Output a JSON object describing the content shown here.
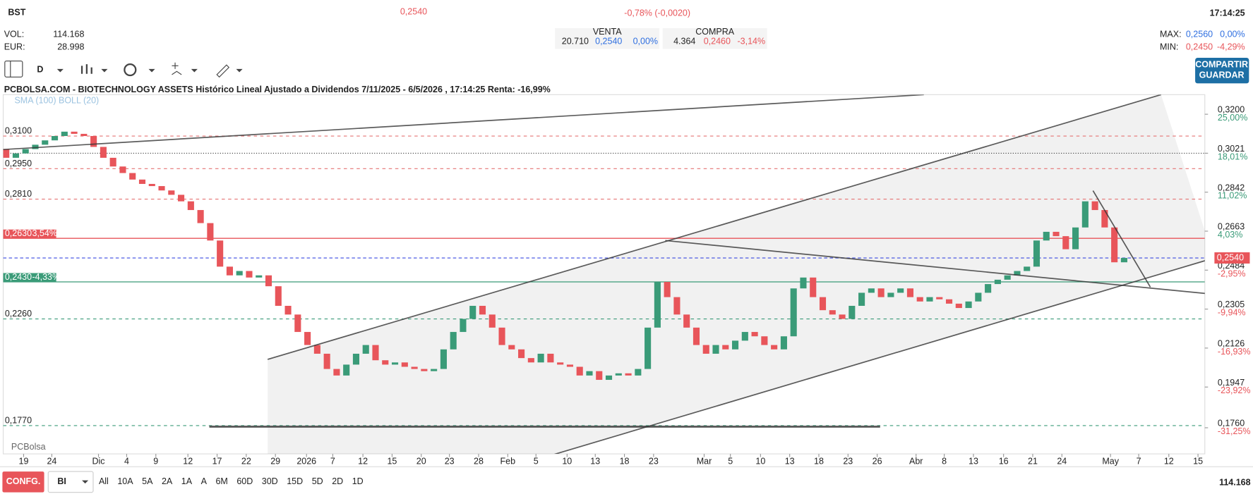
{
  "header": {
    "symbol": "BST",
    "price": "0,2540",
    "change_pct": "-0,78%",
    "change_abs": "(-0,0020)",
    "time": "17:14:25",
    "vol_label": "VOL:",
    "vol": "114.168",
    "eur_label": "EUR:",
    "eur": "28.998"
  },
  "quote": {
    "venta_label": "VENTA",
    "compra_label": "COMPRA",
    "venta": [
      "20.710",
      "0,2540",
      "0,00%"
    ],
    "compra": [
      "4.364",
      "0,2460",
      "-3,14%"
    ]
  },
  "range": {
    "max_label": "MAX:",
    "max": "0,2560",
    "max_pct": "0,00%",
    "min_label": "MIN:",
    "min": "0,2450",
    "min_pct": "-4,29%"
  },
  "toolbar": {
    "interval": "D",
    "share": "COMPARTIR",
    "save": "GUARDAR"
  },
  "footer": {
    "config": "CONFG.",
    "mode": "BI",
    "ranges": [
      "All",
      "10A",
      "5A",
      "2A",
      "1A",
      "A",
      "6M",
      "60D",
      "30D",
      "15D",
      "5D",
      "2D",
      "1D"
    ],
    "volume": "114.168"
  },
  "logo": "PCBolsa",
  "chart_data": {
    "type": "candlestick",
    "title": "PCBOLSA.COM - BIOTECHNOLOGY ASSETS Histórico Lineal Ajustado a Dividendos 7/11/2025 - 6/5/2026 , 17:14:25 Renta: -16,99%",
    "indicators": "SMA (100) BOLL (20)",
    "up_color": "#3a9b78",
    "down_color": "#e8555a",
    "open": [
      0.304,
      0.3,
      0.302,
      0.304,
      0.306,
      0.308,
      0.31,
      0.312,
      0.311,
      0.31,
      0.305,
      0.3,
      0.296,
      0.293,
      0.29,
      0.288,
      0.287,
      0.285,
      0.283,
      0.28,
      0.276,
      0.27,
      0.262,
      0.25,
      0.246,
      0.248,
      0.245,
      0.246,
      0.241,
      0.232,
      0.228,
      0.22,
      0.214,
      0.21,
      0.203,
      0.2,
      0.205,
      0.21,
      0.214,
      0.207,
      0.205,
      0.206,
      0.204,
      0.203,
      0.202,
      0.203,
      0.212,
      0.22,
      0.226,
      0.232,
      0.228,
      0.222,
      0.214,
      0.212,
      0.208,
      0.206,
      0.21,
      0.206,
      0.205,
      0.204,
      0.2,
      0.202,
      0.198,
      0.2,
      0.201,
      0.2,
      0.203,
      0.222,
      0.243,
      0.236,
      0.228,
      0.222,
      0.214,
      0.21,
      0.214,
      0.212,
      0.216,
      0.22,
      0.218,
      0.214,
      0.212,
      0.218,
      0.24,
      0.245,
      0.236,
      0.23,
      0.228,
      0.226,
      0.232,
      0.238,
      0.24,
      0.236,
      0.238,
      0.24,
      0.236,
      0.234,
      0.236,
      0.235,
      0.233,
      0.231,
      0.234,
      0.238,
      0.242,
      0.244,
      0.246,
      0.248,
      0.25,
      0.262,
      0.266,
      0.264,
      0.258,
      0.268,
      0.28,
      0.276,
      0.268,
      0.252
    ],
    "close": [
      0.3,
      0.302,
      0.304,
      0.306,
      0.308,
      0.31,
      0.312,
      0.311,
      0.31,
      0.305,
      0.3,
      0.296,
      0.293,
      0.29,
      0.288,
      0.287,
      0.285,
      0.283,
      0.28,
      0.276,
      0.27,
      0.262,
      0.25,
      0.246,
      0.248,
      0.245,
      0.246,
      0.241,
      0.232,
      0.228,
      0.22,
      0.214,
      0.21,
      0.203,
      0.2,
      0.205,
      0.21,
      0.214,
      0.207,
      0.205,
      0.206,
      0.204,
      0.203,
      0.202,
      0.203,
      0.212,
      0.22,
      0.226,
      0.232,
      0.228,
      0.222,
      0.214,
      0.212,
      0.208,
      0.206,
      0.21,
      0.206,
      0.205,
      0.204,
      0.2,
      0.202,
      0.198,
      0.2,
      0.201,
      0.2,
      0.203,
      0.222,
      0.243,
      0.236,
      0.228,
      0.222,
      0.214,
      0.21,
      0.214,
      0.212,
      0.216,
      0.22,
      0.218,
      0.214,
      0.212,
      0.218,
      0.24,
      0.245,
      0.236,
      0.23,
      0.228,
      0.226,
      0.232,
      0.238,
      0.24,
      0.236,
      0.238,
      0.24,
      0.236,
      0.234,
      0.236,
      0.235,
      0.233,
      0.231,
      0.234,
      0.238,
      0.242,
      0.244,
      0.246,
      0.248,
      0.25,
      0.262,
      0.266,
      0.264,
      0.258,
      0.268,
      0.28,
      0.276,
      0.268,
      0.252,
      0.254
    ],
    "xlim": [
      -0.3,
      123.3
    ],
    "ylim": [
      0.164,
      0.329
    ],
    "xticks": [
      {
        "value": 1.8,
        "label": "19"
      },
      {
        "value": 4.7,
        "label": "24"
      },
      {
        "value": 9.5,
        "label": "Dic"
      },
      {
        "value": 12.4,
        "label": "4"
      },
      {
        "value": 15.4,
        "label": "9"
      },
      {
        "value": 18.7,
        "label": "12"
      },
      {
        "value": 21.7,
        "label": "17"
      },
      {
        "value": 24.7,
        "label": "22"
      },
      {
        "value": 27.7,
        "label": "29"
      },
      {
        "value": 30.9,
        "label": "2026"
      },
      {
        "value": 33.6,
        "label": "7"
      },
      {
        "value": 36.7,
        "label": "12"
      },
      {
        "value": 39.7,
        "label": "15"
      },
      {
        "value": 42.7,
        "label": "20"
      },
      {
        "value": 45.6,
        "label": "23"
      },
      {
        "value": 48.6,
        "label": "28"
      },
      {
        "value": 51.6,
        "label": "Feb"
      },
      {
        "value": 54.5,
        "label": "5"
      },
      {
        "value": 57.7,
        "label": "10"
      },
      {
        "value": 60.6,
        "label": "13"
      },
      {
        "value": 63.6,
        "label": "18"
      },
      {
        "value": 66.6,
        "label": "23"
      },
      {
        "value": 71.8,
        "label": "Mar"
      },
      {
        "value": 74.5,
        "label": "5"
      },
      {
        "value": 77.6,
        "label": "10"
      },
      {
        "value": 80.6,
        "label": "13"
      },
      {
        "value": 83.6,
        "label": "18"
      },
      {
        "value": 86.6,
        "label": "23"
      },
      {
        "value": 89.6,
        "label": "26"
      },
      {
        "value": 93.6,
        "label": "Abr"
      },
      {
        "value": 96.5,
        "label": "8"
      },
      {
        "value": 99.5,
        "label": "13"
      },
      {
        "value": 102.6,
        "label": "16"
      },
      {
        "value": 105.6,
        "label": "21"
      },
      {
        "value": 108.6,
        "label": "24"
      },
      {
        "value": 113.6,
        "label": "May"
      },
      {
        "value": 116.5,
        "label": "7"
      },
      {
        "value": 119.6,
        "label": "12"
      },
      {
        "value": 122.6,
        "label": "15"
      }
    ],
    "yticks": [
      {
        "value": 0.32,
        "label": "0,3200"
      },
      {
        "value": 0.3021,
        "label": "0,3021"
      },
      {
        "value": 0.2842,
        "label": "0,2842"
      },
      {
        "value": 0.2663,
        "label": "0,2663"
      },
      {
        "value": 0.2484,
        "label": "0,2484"
      },
      {
        "value": 0.2305,
        "label": "0,2305"
      },
      {
        "value": 0.2126,
        "label": "0,2126"
      },
      {
        "value": 0.1947,
        "label": "0,1947"
      },
      {
        "value": 0.176,
        "label": "0,1760"
      }
    ],
    "ytick_pcts": [
      "25,00%",
      "18,01%",
      "11,02%",
      "4,03%",
      "-2,95%",
      "-9,94%",
      "-16,93%",
      "-23,92%",
      "-31,25%"
    ],
    "current": {
      "value": 0.254,
      "label": "0,2540",
      "color": "#3949e0"
    },
    "levels": [
      {
        "value": 0.31,
        "label": "0,3100",
        "color": "#e57373",
        "style": "dashed"
      },
      {
        "value": 0.3021,
        "color": "#333333",
        "style": "dotted"
      },
      {
        "value": 0.295,
        "label": "0,2950",
        "color": "#e57373",
        "style": "dashed"
      },
      {
        "value": 0.281,
        "label": "0,2810",
        "color": "#e57373",
        "style": "dashed"
      },
      {
        "value": 0.263,
        "label": "0,2630",
        "pct": "3,54%",
        "color": "#e8555a",
        "style": "solid"
      },
      {
        "value": 0.243,
        "label": "0,2430",
        "pct": "-4,33%",
        "color": "#3a9b78",
        "style": "solid"
      },
      {
        "value": 0.226,
        "label": "0,2260",
        "color": "#3a9b78",
        "style": "dashed"
      },
      {
        "value": 0.177,
        "label": "0,1770",
        "color": "#3a9b78",
        "style": "dashed"
      }
    ],
    "trendlines": [
      {
        "x": [
          -0.3,
          94.4
        ],
        "y": [
          0.3038,
          0.329
        ]
      },
      {
        "x": [
          26.9,
          118.8
        ],
        "y": [
          0.2074,
          0.329
        ]
      },
      {
        "x": [
          56.4,
          124.2
        ],
        "y": [
          0.1638,
          0.2539
        ]
      },
      {
        "x": [
          67.8,
          124.2
        ],
        "y": [
          0.262,
          0.2373
        ]
      },
      {
        "x": [
          111.8,
          117.7
        ],
        "y": [
          0.2849,
          0.2406
        ]
      },
      {
        "x": [
          20.9,
          89.9
        ],
        "y": [
          0.1765,
          0.1765
        ]
      }
    ]
  }
}
